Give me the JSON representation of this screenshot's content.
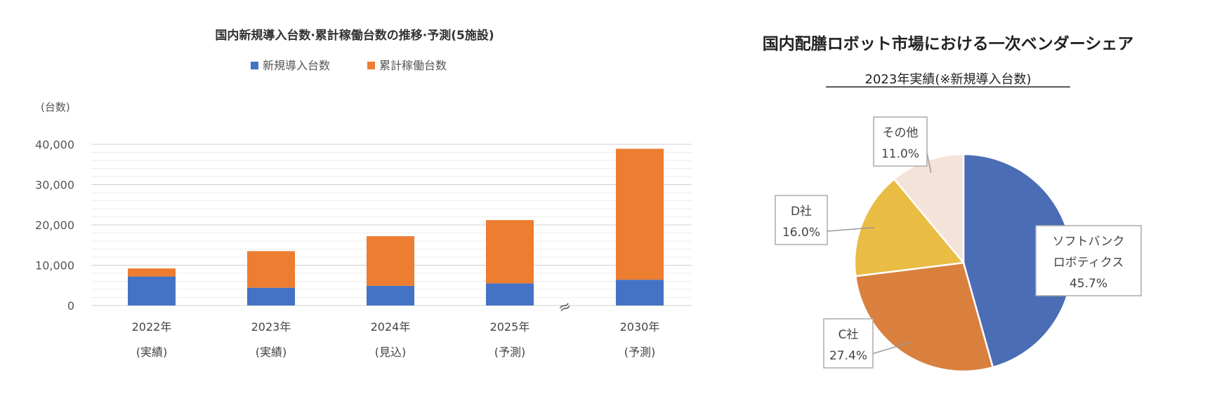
{
  "chart_data": [
    {
      "type": "bar",
      "stacked": true,
      "title": "国内新規導入台数·累計稼働台数の推移·予測(5施設)",
      "unit_label": "(台数)",
      "categories": [
        {
          "year": "2022年",
          "note": "(実績)"
        },
        {
          "year": "2023年",
          "note": "(実績)"
        },
        {
          "year": "2024年",
          "note": "(見込)"
        },
        {
          "year": "2025年",
          "note": "(予測)"
        },
        {
          "year": "2030年",
          "note": "(予測)"
        }
      ],
      "series": [
        {
          "name": "新規導入台数",
          "color": "#4472c4",
          "values": [
            7200,
            4400,
            4900,
            5500,
            6400
          ]
        },
        {
          "name": "累計稼働台数",
          "color": "#ed7d31",
          "values": [
            2000,
            9100,
            12300,
            15700,
            32500
          ]
        }
      ],
      "ylim": [
        0,
        40000
      ],
      "yticks": [
        "0",
        "10,000",
        "20,000",
        "30,000",
        "40,000"
      ],
      "axis_break_symbol": "≈",
      "legend_position": "top",
      "grid": true
    },
    {
      "type": "pie",
      "title": "国内配膳ロボット市場における一次ベンダーシェア",
      "subtitle": "2023年実績(※新規導入台数)",
      "slices": [
        {
          "label_lines": [
            "ソフトバンク",
            "ロボティクス"
          ],
          "value": 45.7,
          "value_label": "45.7%",
          "color": "#4a6db5"
        },
        {
          "label_lines": [
            "C社"
          ],
          "value": 27.4,
          "value_label": "27.4%",
          "color": "#d9803e"
        },
        {
          "label_lines": [
            "D社"
          ],
          "value": 16.0,
          "value_label": "16.0%",
          "color": "#e9bc44"
        },
        {
          "label_lines": [
            "その他"
          ],
          "value": 11.0,
          "value_label": "11.0%",
          "color": "#f4e3d8"
        }
      ]
    }
  ]
}
